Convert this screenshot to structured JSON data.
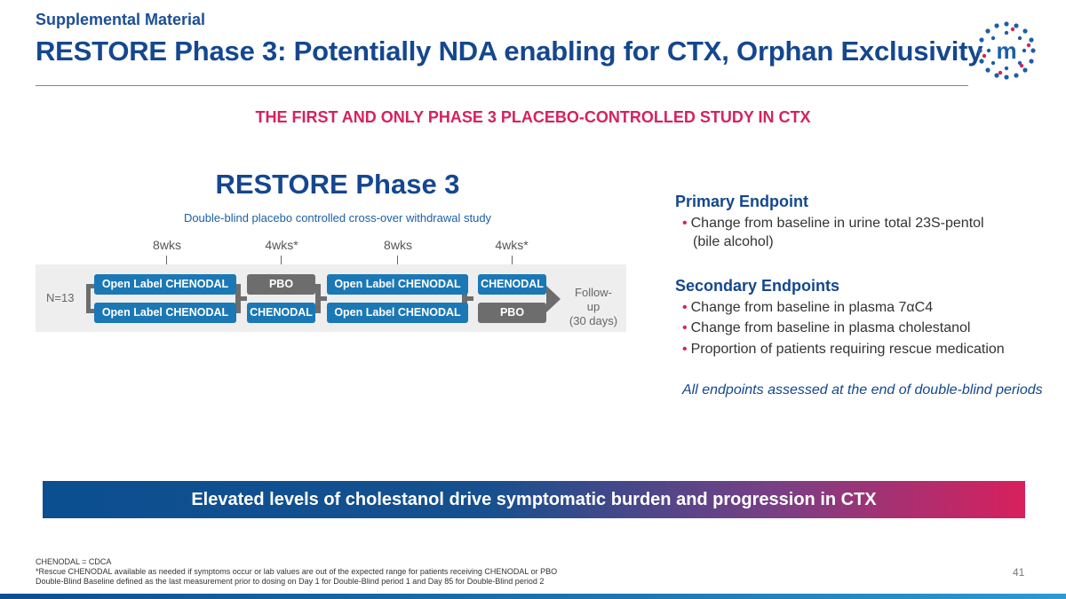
{
  "header": {
    "supplemental": "Supplemental Material",
    "title": "RESTORE Phase 3: Potentially NDA enabling for CTX, Orphan Exclusivity",
    "logo_letter": "m"
  },
  "subhead": "THE FIRST AND ONLY PHASE 3 PLACEBO-CONTROLLED STUDY IN CTX",
  "study": {
    "title": "RESTORE Phase 3",
    "subtitle": "Double-blind placebo controlled cross-over withdrawal study",
    "durations": [
      "8wks",
      "4wks*",
      "8wks",
      "4wks*"
    ],
    "n_label": "N=13",
    "row1": [
      "Open Label CHENODAL",
      "PBO",
      "Open Label CHENODAL",
      "CHENODAL"
    ],
    "row2": [
      "Open Label CHENODAL",
      "CHENODAL",
      "Open Label CHENODAL",
      "PBO"
    ],
    "follow_up": [
      "Follow-up",
      "(30 days)"
    ]
  },
  "endpoints": {
    "primary_heading": "Primary Endpoint",
    "primary_items": [
      "Change from baseline in urine total 23S-pentol",
      "(bile alcohol)"
    ],
    "secondary_heading": "Secondary Endpoints",
    "secondary_items": [
      "Change from baseline in plasma 7αC4",
      "Change from baseline in plasma cholestanol",
      "Proportion of patients requiring rescue medication"
    ],
    "note": "All endpoints assessed at the end of double-blind periods"
  },
  "banner": "Elevated levels of cholestanol drive symptomatic burden and progression in CTX",
  "footnotes": [
    "CHENODAL = CDCA",
    "*Rescue CHENODAL available as needed if symptoms occur or lab values are out of the expected range for patients receiving CHENODAL or PBO",
    "Double-Blind Baseline defined as  the last measurement prior to dosing on Day 1 for Double-Blind period 1 and Day 85 for Double-Blind period 2"
  ],
  "page_number": "41",
  "colors": {
    "navy": "#14478f",
    "accent": "#d5225f",
    "blue_box": "#1b78b5",
    "gray_box": "#6d6d6d"
  }
}
